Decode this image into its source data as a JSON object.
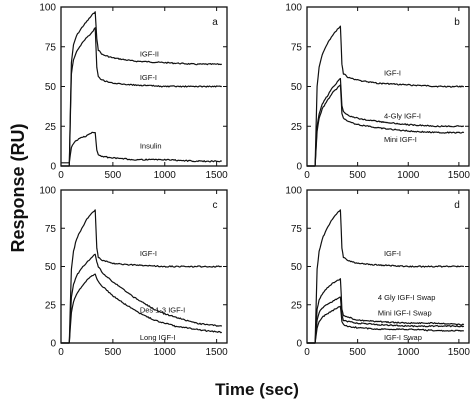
{
  "figure": {
    "ylabel": "Response (RU)",
    "xlabel": "Time (sec)"
  },
  "chart_data": [
    {
      "type": "line",
      "panel_label": "a",
      "xlim": [
        0,
        1600
      ],
      "ylim": [
        0,
        100
      ],
      "xticks": [
        0,
        500,
        1000,
        1500
      ],
      "yticks": [
        0,
        25,
        50,
        75,
        100
      ],
      "grid": false,
      "annotations": [
        {
          "text": "IGF-II",
          "x": 760,
          "y": 69
        },
        {
          "text": "IGF-I",
          "x": 760,
          "y": 54
        },
        {
          "text": "Insulin",
          "x": 760,
          "y": 11
        }
      ],
      "series": [
        {
          "x": [
            0,
            80,
            100,
            120,
            150,
            200,
            250,
            300,
            330,
            345,
            360,
            400,
            500,
            700,
            1000,
            1300,
            1550
          ],
          "y": [
            0,
            0,
            65,
            76,
            82,
            87,
            91,
            95,
            97,
            80,
            73,
            70,
            68,
            66,
            65,
            64,
            64
          ]
        },
        {
          "x": [
            0,
            80,
            100,
            120,
            150,
            200,
            250,
            300,
            330,
            345,
            360,
            400,
            500,
            700,
            1000,
            1300,
            1550
          ],
          "y": [
            0,
            0,
            58,
            67,
            72,
            77,
            81,
            84,
            87,
            62,
            56,
            54,
            52,
            51,
            50,
            50,
            50
          ]
        },
        {
          "x": [
            0,
            80,
            100,
            130,
            170,
            200,
            250,
            300,
            330,
            345,
            360,
            400,
            500,
            700,
            1000,
            1300,
            1550
          ],
          "y": [
            2,
            2,
            12,
            15,
            17,
            18,
            19,
            21,
            21,
            10,
            7,
            6,
            5,
            4,
            4,
            3,
            3
          ]
        }
      ]
    },
    {
      "type": "line",
      "panel_label": "b",
      "xlim": [
        0,
        1600
      ],
      "ylim": [
        0,
        100
      ],
      "xticks": [
        0,
        500,
        1000,
        1500
      ],
      "yticks": [
        0,
        25,
        50,
        75,
        100
      ],
      "grid": false,
      "annotations": [
        {
          "text": "IGF-I",
          "x": 760,
          "y": 57
        },
        {
          "text": "4-Gly IGF-I",
          "x": 760,
          "y": 30
        },
        {
          "text": "Mini IGF-I",
          "x": 760,
          "y": 15
        }
      ],
      "series": [
        {
          "x": [
            0,
            80,
            100,
            120,
            150,
            200,
            250,
            300,
            330,
            345,
            360,
            400,
            500,
            700,
            1000,
            1300,
            1550
          ],
          "y": [
            0,
            0,
            50,
            62,
            70,
            77,
            82,
            86,
            88,
            64,
            58,
            56,
            54,
            52,
            51,
            50,
            50
          ]
        },
        {
          "x": [
            0,
            80,
            100,
            120,
            150,
            200,
            250,
            300,
            330,
            345,
            360,
            400,
            500,
            700,
            1000,
            1300,
            1550
          ],
          "y": [
            0,
            0,
            25,
            33,
            39,
            44,
            49,
            53,
            55,
            38,
            34,
            32,
            30,
            28,
            26,
            25,
            25
          ]
        },
        {
          "x": [
            0,
            80,
            100,
            120,
            150,
            200,
            250,
            300,
            330,
            345,
            360,
            400,
            500,
            700,
            1000,
            1300,
            1550
          ],
          "y": [
            0,
            0,
            22,
            30,
            36,
            41,
            46,
            49,
            51,
            33,
            30,
            28,
            26,
            24,
            22,
            21,
            21
          ]
        }
      ]
    },
    {
      "type": "line",
      "panel_label": "c",
      "xlim": [
        0,
        1600
      ],
      "ylim": [
        0,
        100
      ],
      "xticks": [
        0,
        500,
        1000,
        1500
      ],
      "yticks": [
        0,
        25,
        50,
        75,
        100
      ],
      "grid": false,
      "annotations": [
        {
          "text": "IGF-I",
          "x": 760,
          "y": 57
        },
        {
          "text": "Des 1-3 IGF-I",
          "x": 760,
          "y": 20
        },
        {
          "text": "Long IGF-I",
          "x": 760,
          "y": 2
        }
      ],
      "series": [
        {
          "x": [
            0,
            80,
            100,
            120,
            150,
            200,
            250,
            300,
            330,
            345,
            360,
            400,
            500,
            700,
            1000,
            1300,
            1550
          ],
          "y": [
            0,
            0,
            48,
            60,
            68,
            75,
            81,
            85,
            87,
            62,
            56,
            54,
            52,
            51,
            50,
            50,
            50
          ]
        },
        {
          "x": [
            0,
            80,
            100,
            120,
            150,
            200,
            250,
            300,
            330,
            345,
            360,
            400,
            500,
            600,
            700,
            800,
            900,
            1000,
            1100,
            1200,
            1300,
            1400,
            1550
          ],
          "y": [
            0,
            0,
            30,
            38,
            44,
            49,
            53,
            56,
            58,
            53,
            50,
            46,
            40,
            35,
            30,
            26,
            22,
            19,
            17,
            15,
            13,
            12,
            11
          ]
        },
        {
          "x": [
            0,
            80,
            100,
            120,
            150,
            200,
            250,
            300,
            330,
            345,
            360,
            400,
            500,
            600,
            700,
            800,
            900,
            1000,
            1100,
            1200,
            1300,
            1400,
            1550
          ],
          "y": [
            0,
            0,
            20,
            27,
            32,
            37,
            41,
            44,
            45,
            42,
            40,
            37,
            31,
            26,
            22,
            18,
            15,
            13,
            11,
            10,
            9,
            8,
            7
          ]
        }
      ]
    },
    {
      "type": "line",
      "panel_label": "d",
      "xlim": [
        0,
        1600
      ],
      "ylim": [
        0,
        100
      ],
      "xticks": [
        0,
        500,
        1000,
        1500
      ],
      "yticks": [
        0,
        25,
        50,
        75,
        100
      ],
      "grid": false,
      "annotations": [
        {
          "text": "IGF-I",
          "x": 760,
          "y": 57
        },
        {
          "text": "4 Gly IGF-I Swap",
          "x": 700,
          "y": 28
        },
        {
          "text": "Mini IGF-I Swap",
          "x": 700,
          "y": 18
        },
        {
          "text": "IGF-I Swap",
          "x": 760,
          "y": 2
        }
      ],
      "series": [
        {
          "x": [
            0,
            80,
            100,
            120,
            150,
            200,
            250,
            300,
            330,
            345,
            360,
            400,
            500,
            700,
            1000,
            1300,
            1550
          ],
          "y": [
            0,
            0,
            48,
            60,
            68,
            75,
            81,
            85,
            87,
            62,
            56,
            54,
            52,
            51,
            50,
            50,
            50
          ]
        },
        {
          "x": [
            0,
            80,
            100,
            120,
            150,
            200,
            250,
            300,
            330,
            345,
            360,
            400,
            500,
            700,
            1000,
            1300,
            1550
          ],
          "y": [
            0,
            0,
            22,
            28,
            32,
            36,
            39,
            41,
            42,
            22,
            18,
            17,
            15,
            14,
            13,
            13,
            12
          ]
        },
        {
          "x": [
            0,
            80,
            100,
            120,
            150,
            200,
            250,
            300,
            330,
            345,
            360,
            400,
            500,
            700,
            1000,
            1300,
            1550
          ],
          "y": [
            0,
            0,
            15,
            20,
            23,
            25,
            27,
            29,
            30,
            18,
            15,
            14,
            13,
            12,
            11,
            11,
            11
          ]
        },
        {
          "x": [
            0,
            80,
            100,
            120,
            150,
            200,
            250,
            300,
            330,
            345,
            360,
            400,
            500,
            700,
            1000,
            1300,
            1550
          ],
          "y": [
            0,
            0,
            10,
            14,
            17,
            19,
            21,
            23,
            24,
            14,
            12,
            11,
            10,
            9,
            9,
            8,
            8
          ]
        }
      ]
    }
  ]
}
